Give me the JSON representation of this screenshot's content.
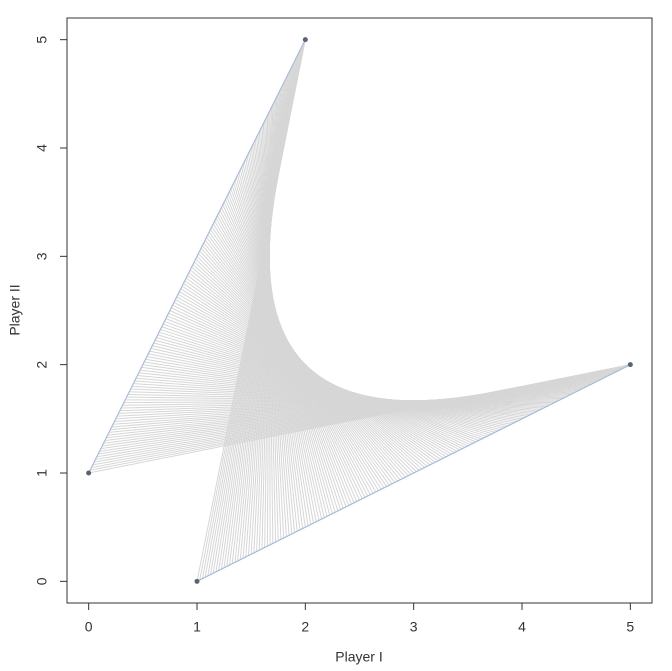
{
  "chart_data": {
    "type": "scatter",
    "x_label": "Player I",
    "y_label": "Player II",
    "x": [
      0,
      2,
      5,
      1
    ],
    "values": [
      1,
      5,
      2,
      0
    ],
    "color": "#5a6470",
    "xlim": [
      -0.2,
      5.2
    ],
    "ylim": [
      -0.2,
      5.2
    ],
    "xticks": [
      0,
      1,
      2,
      3,
      4,
      5
    ],
    "yticks": [
      0,
      1,
      2,
      3,
      4,
      5
    ]
  }
}
